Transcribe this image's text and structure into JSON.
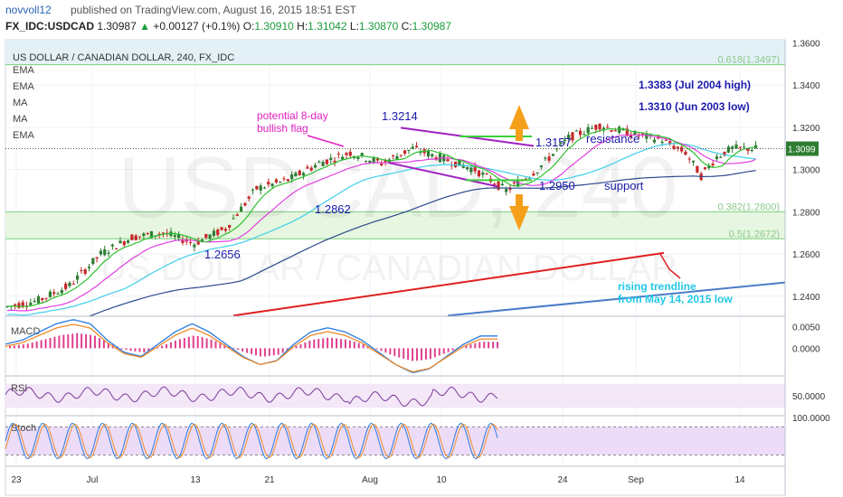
{
  "header": {
    "author": "novvoll12",
    "published": "published on TradingView.com, August 16, 2015 18:51 EST",
    "symbol": "FX_IDC:USDCAD",
    "last": "1.30987",
    "change_arrow": "▲",
    "change": "+0.00127 (+0.1%)",
    "o_label": "O:",
    "o_value": "1.30910",
    "h_label": "H:",
    "h_value": "1.31042",
    "l_label": "L:",
    "l_value": "1.30870",
    "c_label": "C:",
    "c_value": "1.30987"
  },
  "chart_title": "US DOLLAR / CANADIAN DOLLAR, 240, FX_IDC",
  "indicator_labels": [
    "EMA",
    "EMA",
    "MA",
    "MA",
    "EMA"
  ],
  "watermark": {
    "symbol": "USDCAD, 240",
    "name": "US DOLLAR / CANADIAN DOLLAR"
  },
  "colors": {
    "up": "#2e7d32",
    "down": "#c62828",
    "annotation_blue": "#1a1aaa",
    "magenta": "#e020c0",
    "arrow_orange": "#f5a01a",
    "trend_red": "#e02020",
    "trend_blue": "#4a7cc8",
    "fib_line": "#7ccf7c",
    "cyan_text": "#22c8e8"
  },
  "chart_data": {
    "type": "line",
    "price_axis": {
      "ticks": [
        "1.3600",
        "1.3400",
        "1.3200",
        "1.3000",
        "1.2800",
        "1.2600",
        "1.2400"
      ],
      "tick_values": [
        1.36,
        1.34,
        1.32,
        1.3,
        1.28,
        1.26,
        1.24
      ],
      "range": [
        1.2305,
        1.3615
      ],
      "current_price_label": "1.3099",
      "current_price": 1.3099
    },
    "date_axis": [
      "23",
      "Jul",
      "13",
      "21",
      "Aug",
      "10",
      "24",
      "Sep",
      "14"
    ],
    "price_path": {
      "name": "USDCAD close (approx.)",
      "x": [
        0,
        4,
        8,
        12,
        16,
        20,
        24,
        28,
        32,
        36,
        40,
        44,
        48,
        52,
        56,
        60,
        64,
        68,
        72,
        76,
        80,
        84,
        87,
        89,
        91,
        93,
        96
      ],
      "y": [
        1.235,
        1.238,
        1.245,
        1.26,
        1.268,
        1.27,
        1.265,
        1.272,
        1.291,
        1.295,
        1.303,
        1.308,
        1.303,
        1.31,
        1.305,
        1.3,
        1.29,
        1.3,
        1.315,
        1.321,
        1.317,
        1.314,
        1.308,
        1.297,
        1.306,
        1.31,
        1.3099
      ]
    },
    "fibonacci": [
      {
        "label": "0.618(1.3497)",
        "value": 1.3497
      },
      {
        "label": "0.382(1.2800)",
        "value": 1.28
      },
      {
        "label": "0.5(1.2672)",
        "value": 1.2672
      }
    ],
    "annotations": {
      "price_labels": [
        "1.3214",
        "1.2862",
        "1.2656",
        "1.3157",
        "1.2950"
      ],
      "resistance": "resistance",
      "support": "support",
      "flag": "potential 8-day bullish flag",
      "jul2004": "1.3383 (Jul 2004 high)",
      "jun2003": "1.3310 (Jun 2003 low)",
      "trendline": "rising trendline from May 14, 2015 low"
    },
    "macd": {
      "label": "MACD",
      "ticks": [
        "0.0050",
        "0.0000"
      ],
      "tick_values": [
        0.005,
        0.0
      ],
      "range": [
        -0.006,
        0.007
      ],
      "hist": [
        0.0005,
        0.001,
        0.002,
        0.003,
        0.0035,
        0.003,
        0.001,
        -0.0005,
        -0.001,
        0.0005,
        0.002,
        0.003,
        0.002,
        0.0005,
        -0.001,
        -0.002,
        -0.0015,
        0.0005,
        0.002,
        0.0025,
        0.002,
        0.001,
        -0.0005,
        -0.002,
        -0.003,
        -0.0025,
        -0.001,
        0.0005,
        0.0015,
        0.0015
      ]
    },
    "rsi": {
      "label": "RSI",
      "ticks": [
        "50.0000"
      ],
      "tick_values": [
        50
      ],
      "range": [
        20,
        80
      ]
    },
    "stoch": {
      "label": "Stoch",
      "ticks": [
        "100.0000"
      ],
      "tick_values": [
        100
      ],
      "range": [
        0,
        100
      ]
    }
  }
}
